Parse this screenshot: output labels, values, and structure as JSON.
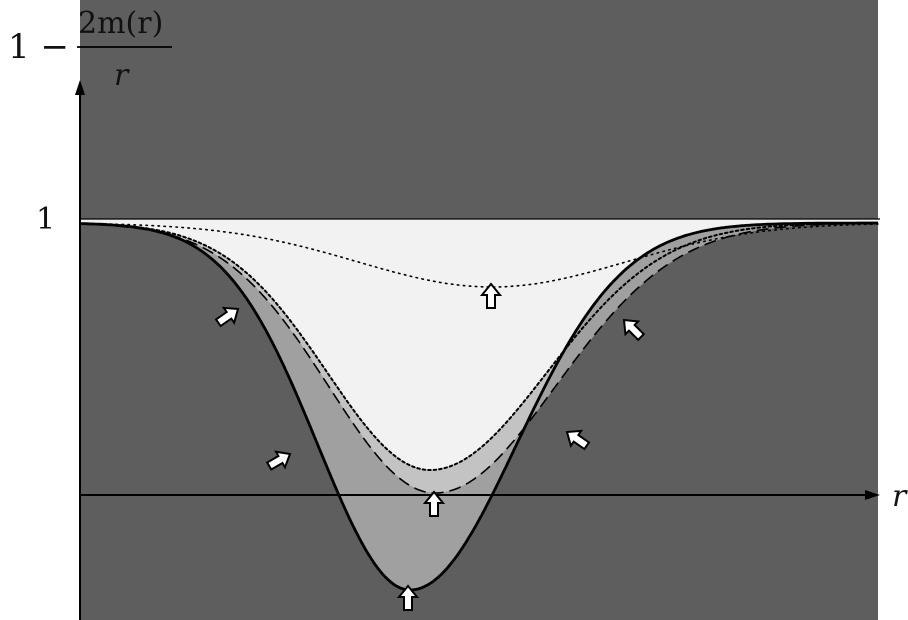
{
  "y_axis_label": {
    "lead": "1 −",
    "numerator": "2m(r)",
    "denominator": "r"
  },
  "x_axis_label": "r",
  "y_tick_label": "1",
  "colors": {
    "outer_region": "#5e5e5e",
    "mid_region": "#a0a0a0",
    "inner_band": "#c3c3c3",
    "top_region": "#f2f2f2",
    "lines": "#000000",
    "arrow_fill": "#ffffff"
  },
  "curves": [
    {
      "name": "solid-curve",
      "style": "solid"
    },
    {
      "name": "dashed-curve",
      "style": "dashed"
    },
    {
      "name": "densely-dotted-curve",
      "style": "dotted"
    },
    {
      "name": "sparse-dotted-curve",
      "style": "sparse-dotted"
    }
  ],
  "arrow_icon": "up-arrow-icon",
  "arrow_count": 7
}
